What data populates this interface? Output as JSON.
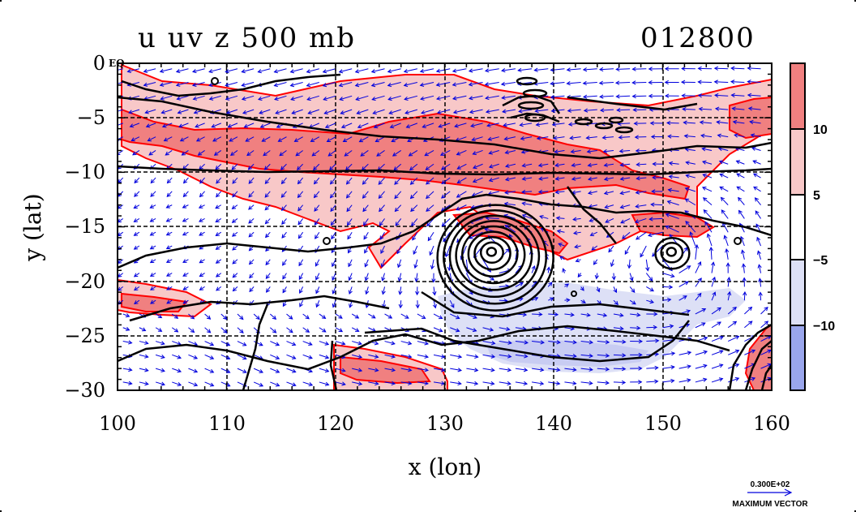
{
  "title": {
    "field_label": "u uv z 500 mb",
    "timestamp": "012800"
  },
  "map": {
    "xlabel": "x (lon)",
    "ylabel": "y (lat)",
    "xticks": [
      "100",
      "110",
      "120",
      "130",
      "140",
      "150",
      "160"
    ],
    "yticks": [
      "0",
      "−5",
      "−10",
      "−15",
      "−20",
      "−25",
      "−30"
    ],
    "equator_mark": "EQ",
    "xlim": [
      100,
      160
    ],
    "ylim": [
      -30,
      0
    ],
    "grid": true,
    "cyclones": [
      {
        "lon": 134.3,
        "lat": -17.3,
        "rings": 9
      },
      {
        "lon": 150.8,
        "lat": -17.3,
        "rings": 3
      }
    ],
    "colors": {
      "shade_strong_pos": "#f08080",
      "shade_weak_pos": "#f8c8c8",
      "shade_weak_neg": "#dde0f6",
      "shade_strong_neg": "#9aa6ec",
      "contour_u": "#ff0000",
      "vector": "#0000dd",
      "height_contour": "#000000"
    }
  },
  "colorbar": {
    "labels": [
      "10",
      "5",
      "−5",
      "−10"
    ],
    "bins": [
      {
        "range": "> 10",
        "color": "#f08080"
      },
      {
        "range": "5 to 10",
        "color": "#f8c8c8"
      },
      {
        "range": "-5 to 5",
        "color": "#ffffff"
      },
      {
        "range": "-10 to -5",
        "color": "#dde0f6"
      },
      {
        "range": "< -10",
        "color": "#9aa6ec"
      }
    ]
  },
  "vector_key": {
    "value": "0.300E+02",
    "label": "MAXIMUM VECTOR"
  }
}
